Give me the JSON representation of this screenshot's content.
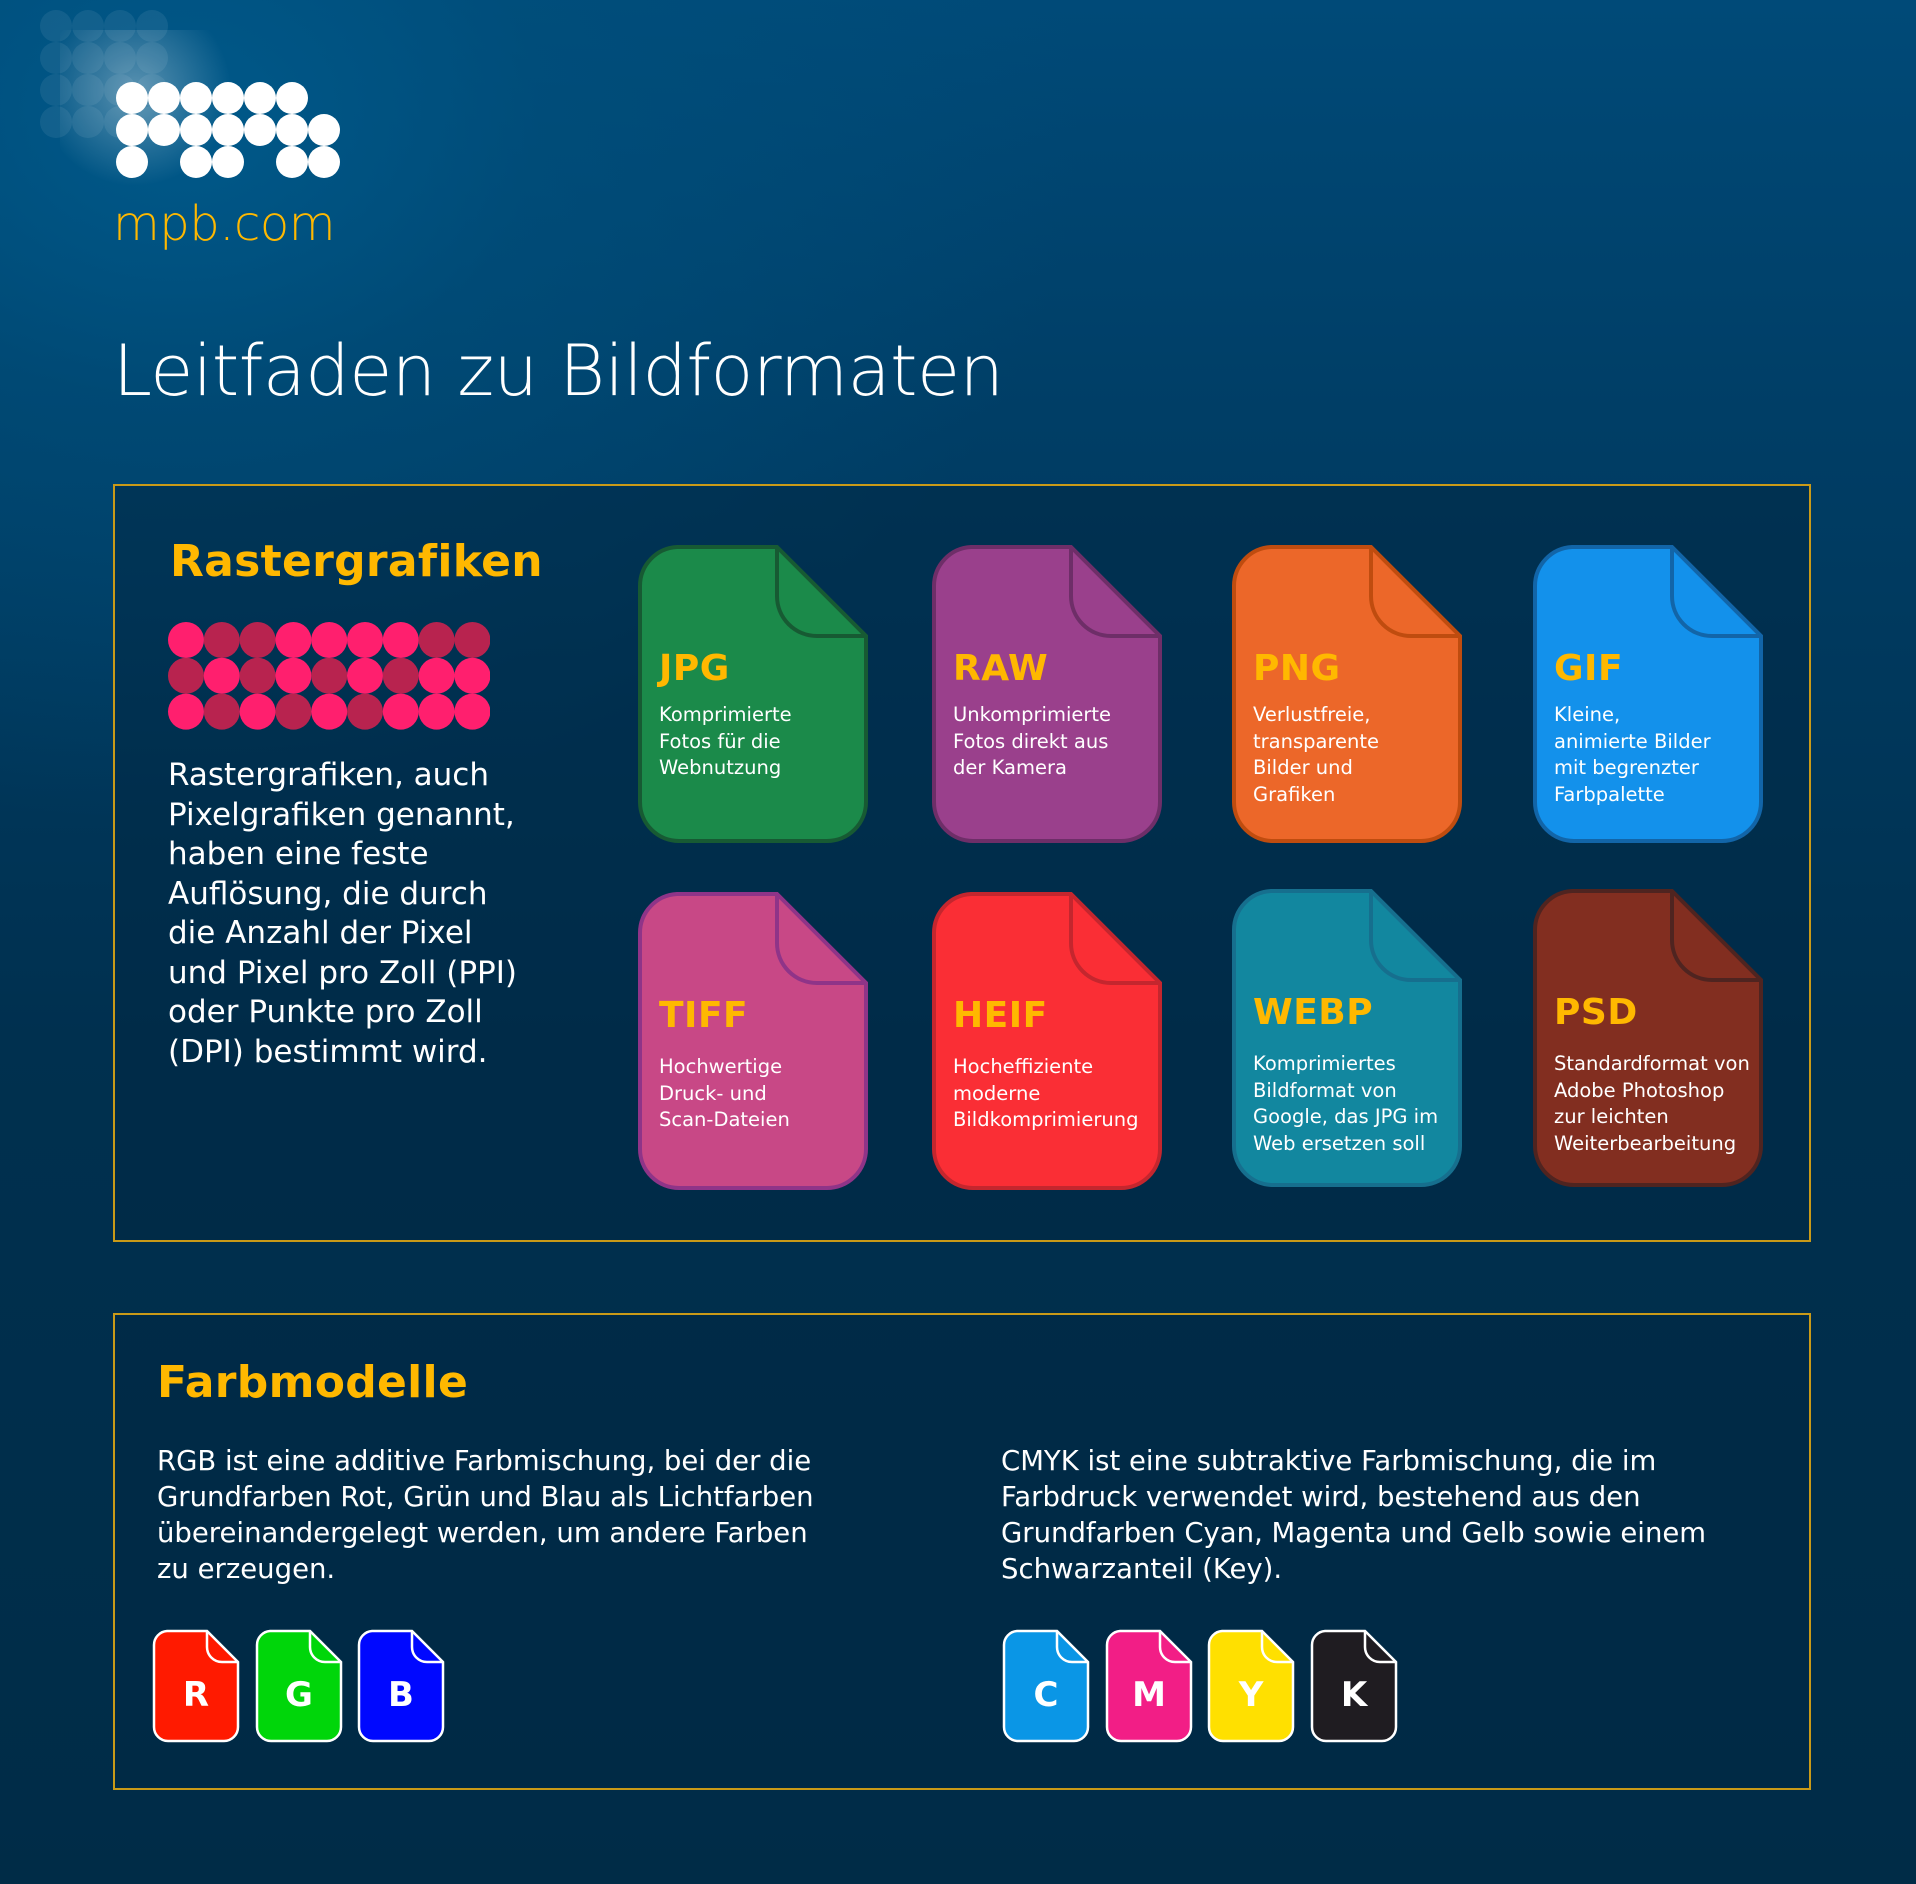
{
  "brand": {
    "url": "mpb.com",
    "logo_color": "#ffffff",
    "accent": "#ffb800"
  },
  "page_title": "Leitfaden zu Bildformaten",
  "raster": {
    "title": "Rastergrafiken",
    "description": "Rastergrafiken, auch\nPixelgrafiken genannt,\nhaben eine feste\nAuflösung, die durch\ndie Anzahl der Pixel\nund Pixel pro Zoll (PPI)\noder Punkte pro Zoll\n(DPI) bestimmt wird.",
    "pixel_colors": {
      "bright": "#ff1f6e",
      "dark": "#b8234f"
    },
    "formats": [
      {
        "name": "JPG",
        "description": "Komprimierte\nFotos für die\nWebnutzung",
        "fill": "#1b8a4a",
        "stroke": "#175a33"
      },
      {
        "name": "RAW",
        "description": "Unkomprimierte\nFotos direkt aus\nder Kamera",
        "fill": "#9a408c",
        "stroke": "#6e2e68"
      },
      {
        "name": "PNG",
        "description": "Verlustfreie,\ntransparente\nBilder und\nGrafiken",
        "fill": "#ec6729",
        "stroke": "#bf4c0f"
      },
      {
        "name": "GIF",
        "description": "Kleine,\nanimierte Bilder\nmit begrenzter\nFarbpalette",
        "fill": "#1391eb",
        "stroke": "#1265a8"
      },
      {
        "name": "TIFF",
        "description": "Hochwertige\nDruck- und\nScan-Dateien",
        "fill": "#c84886",
        "stroke": "#8f3488"
      },
      {
        "name": "HEIF",
        "description": "Hocheffiziente\nmoderne\nBildkomprimierung",
        "fill": "#fa2e35",
        "stroke": "#c4262e"
      },
      {
        "name": "WEBP",
        "description": "Komprimiertes\nBildformat von\nGoogle, das JPG im\nWeb ersetzen soll",
        "fill": "#12879f",
        "stroke": "#166f8e"
      },
      {
        "name": "PSD",
        "description": "Standardformat von\nAdobe Photoshop\nzur leichten\nWeiterbearbeitung",
        "fill": "#822e20",
        "stroke": "#4f2420"
      }
    ]
  },
  "color_models": {
    "title": "Farbmodelle",
    "rgb": {
      "description": "RGB ist eine additive Farbmischung, bei der die\nGrundfarben Rot, Grün und Blau als Lichtfarben\nübereinandergelegt werden, um andere Farben\nzu erzeugen.",
      "swatches": [
        {
          "letter": "R",
          "color": "#ff1a00"
        },
        {
          "letter": "G",
          "color": "#00d60a"
        },
        {
          "letter": "B",
          "color": "#0008ff"
        }
      ]
    },
    "cmyk": {
      "description": "CMYK ist eine subtraktive Farbmischung, die im\nFarbdruck verwendet wird, bestehend aus den\nGrundfarben Cyan, Magenta und Gelb sowie einem\nSchwarzanteil (Key).",
      "swatches": [
        {
          "letter": "C",
          "color": "#0a96e6"
        },
        {
          "letter": "M",
          "color": "#f21e86"
        },
        {
          "letter": "Y",
          "color": "#ffe000"
        },
        {
          "letter": "K",
          "color": "#1f1c21"
        }
      ]
    }
  }
}
